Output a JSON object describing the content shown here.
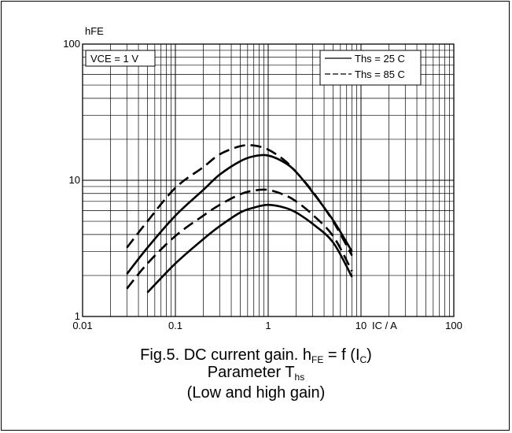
{
  "chart_data": {
    "type": "line",
    "x_scale": "log",
    "y_scale": "log",
    "xlim": [
      0.01,
      100
    ],
    "ylim": [
      1,
      100
    ],
    "x_ticks": [
      "0.01",
      "0.1",
      "1",
      "10",
      "100"
    ],
    "y_ticks": [
      "1",
      "10",
      "100"
    ],
    "xlabel": "IC / A",
    "ylabel": "hFE",
    "annotation": "VCE = 1 V",
    "grid": true,
    "legend_position": "top-right",
    "legend": [
      {
        "label": "Ths = 25 C",
        "style": "solid"
      },
      {
        "label": "Ths = 85 C",
        "style": "dashed"
      }
    ],
    "series": [
      {
        "group": "Ths = 85 C",
        "style": "dashed",
        "x": [
          0.03,
          0.05,
          0.1,
          0.2,
          0.3,
          0.5,
          0.7,
          1,
          1.5,
          2,
          3,
          5,
          8
        ],
        "y": [
          3.2,
          5.0,
          8.8,
          12.5,
          15.5,
          17.8,
          18.0,
          16.8,
          14.0,
          11.5,
          8.3,
          5.0,
          2.8
        ]
      },
      {
        "group": "Ths = 25 C",
        "style": "solid",
        "x": [
          0.03,
          0.05,
          0.1,
          0.2,
          0.3,
          0.5,
          0.7,
          1,
          1.5,
          2,
          3,
          5,
          8
        ],
        "y": [
          2.05,
          3.2,
          5.5,
          8.5,
          11.0,
          13.8,
          15.0,
          15.2,
          13.5,
          11.5,
          8.2,
          5.1,
          3.0
        ]
      },
      {
        "group": "Ths = 85 C",
        "style": "dashed",
        "x": [
          0.03,
          0.05,
          0.1,
          0.2,
          0.3,
          0.5,
          0.7,
          1,
          1.5,
          2,
          3,
          5,
          8
        ],
        "y": [
          1.6,
          2.45,
          3.9,
          5.5,
          6.6,
          7.9,
          8.4,
          8.5,
          7.8,
          7.0,
          5.6,
          3.9,
          2.15
        ]
      },
      {
        "group": "Ths = 25 C",
        "style": "solid",
        "x": [
          0.05,
          0.1,
          0.2,
          0.3,
          0.5,
          0.7,
          1,
          1.5,
          2,
          3,
          5,
          8
        ],
        "y": [
          1.5,
          2.45,
          3.7,
          4.6,
          5.8,
          6.3,
          6.6,
          6.3,
          5.8,
          4.8,
          3.5,
          1.95
        ]
      }
    ]
  },
  "caption": {
    "line1_prefix": "Fig.5.   DC current gain. h",
    "line1_sub1": "FE",
    "line1_mid": " = f (I",
    "line1_sub2": "C",
    "line1_end": ")",
    "line2": "Parameter T",
    "line2_sub": "hs",
    "line3": "(Low and high gain)"
  }
}
